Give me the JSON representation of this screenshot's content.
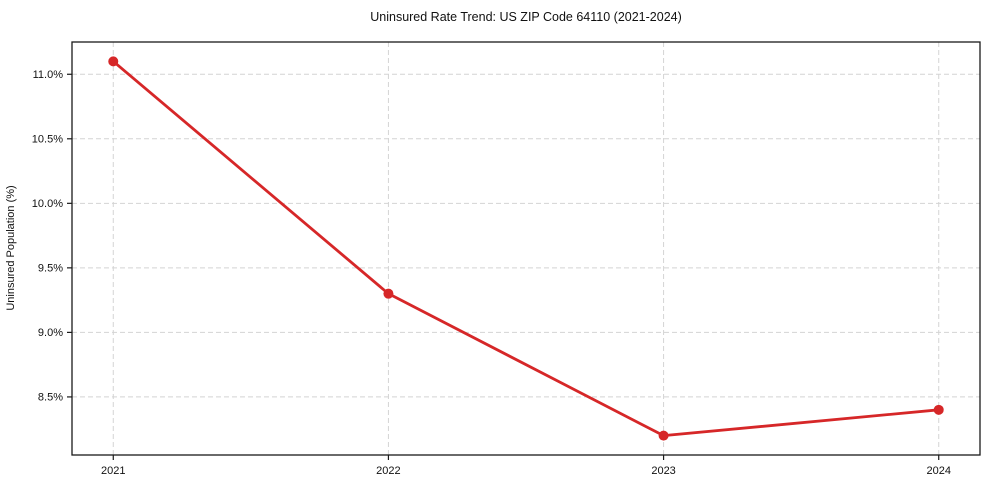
{
  "chart_data": {
    "type": "line",
    "title": "Uninsured Rate Trend: US ZIP Code 64110 (2021-2024)",
    "xlabel": "",
    "ylabel": "Uninsured Population (%)",
    "x": [
      2021,
      2022,
      2023,
      2024
    ],
    "series": [
      {
        "name": "Uninsured rate",
        "values": [
          11.1,
          9.3,
          8.2,
          8.4
        ],
        "color": "#d62728",
        "marker": "circle"
      }
    ],
    "xlim": [
      2020.85,
      2024.15
    ],
    "ylim": [
      8.05,
      11.25
    ],
    "xticks": [
      {
        "value": 2021,
        "label": "2021"
      },
      {
        "value": 2022,
        "label": "2022"
      },
      {
        "value": 2023,
        "label": "2023"
      },
      {
        "value": 2024,
        "label": "2024"
      }
    ],
    "yticks": [
      {
        "value": 8.5,
        "label": "8.5%"
      },
      {
        "value": 9.0,
        "label": "9.0%"
      },
      {
        "value": 9.5,
        "label": "9.5%"
      },
      {
        "value": 10.0,
        "label": "10.0%"
      },
      {
        "value": 10.5,
        "label": "10.5%"
      },
      {
        "value": 11.0,
        "label": "11.0%"
      }
    ],
    "grid": "both",
    "grid_color": "#d4d4d4",
    "legend": "none",
    "background": "#ffffff"
  }
}
